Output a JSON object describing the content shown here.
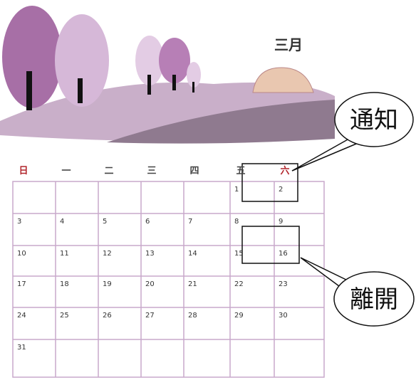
{
  "month": "三月",
  "weekdays": [
    "日",
    "一",
    "二",
    "三",
    "四",
    "五",
    "六"
  ],
  "weeks": [
    [
      null,
      null,
      null,
      null,
      null,
      1,
      2
    ],
    [
      3,
      4,
      5,
      6,
      7,
      8,
      9
    ],
    [
      10,
      11,
      12,
      13,
      14,
      15,
      16
    ],
    [
      17,
      18,
      19,
      20,
      21,
      22,
      23
    ],
    [
      24,
      25,
      26,
      27,
      28,
      29,
      30
    ],
    [
      31,
      null,
      null,
      null,
      null,
      null,
      null
    ]
  ],
  "callouts": [
    {
      "label": "通知"
    },
    {
      "label": "離開"
    }
  ]
}
